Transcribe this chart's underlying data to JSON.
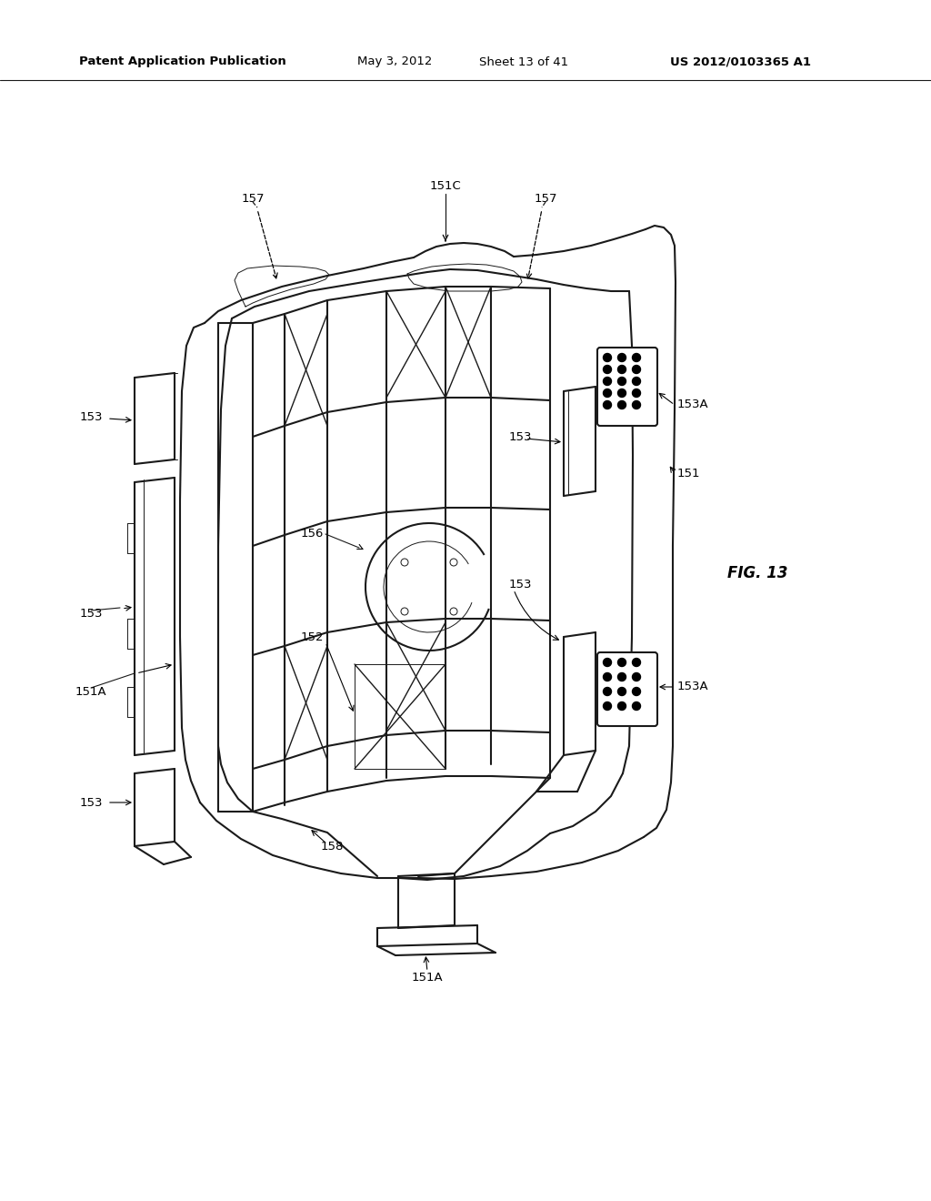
{
  "background_color": "#ffffff",
  "header_text": "Patent Application Publication",
  "header_date": "May 3, 2012",
  "header_sheet": "Sheet 13 of 41",
  "header_patent": "US 2012/0103365 A1",
  "fig_label": "FIG. 13",
  "line_color": "#1a1a1a",
  "lw_main": 1.5,
  "lw_inner": 1.0,
  "lw_thin": 0.7,
  "label_fontsize": 9.5,
  "header_fontsize": 9.5,
  "fig_label_fontsize": 12
}
